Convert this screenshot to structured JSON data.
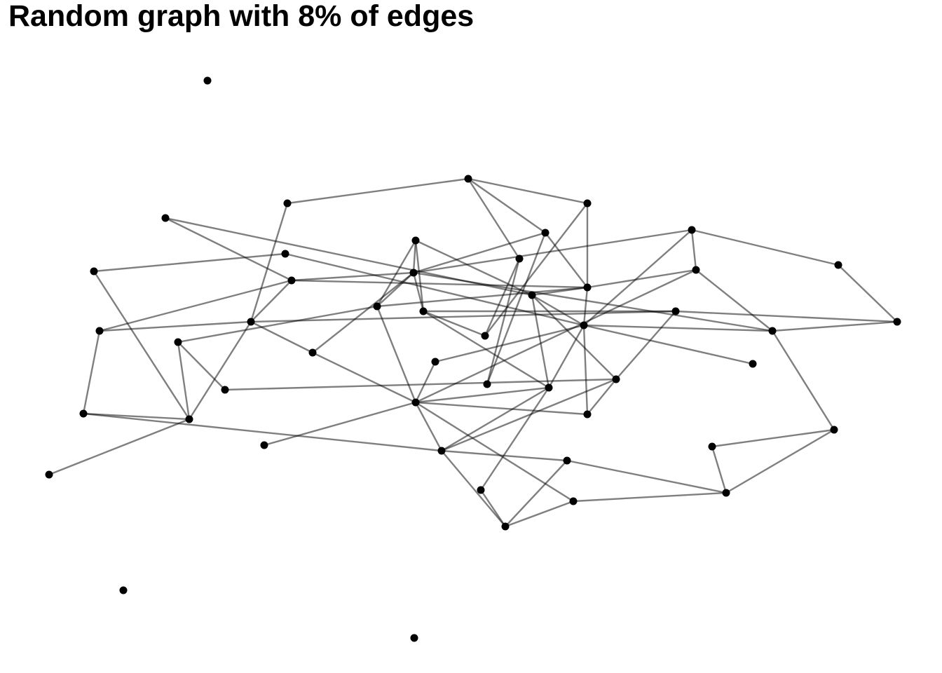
{
  "title": "Random graph with 8% of edges",
  "colors": {
    "edge": "#000000",
    "edge_opacity": 0.5,
    "node": "#000000",
    "background": "#ffffff"
  },
  "graph": {
    "directed": false,
    "node_count": 50
  }
}
